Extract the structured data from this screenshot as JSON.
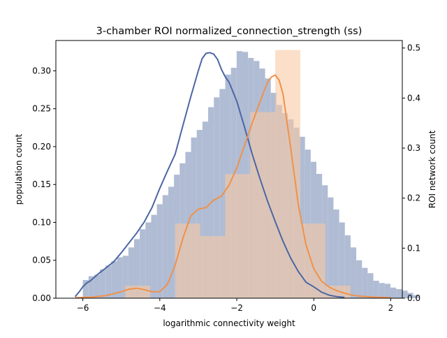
{
  "chart_data": {
    "type": "bar",
    "title": "3-chamber ROI normalized_connection_strength (ss)",
    "xlabel": "logarithmic connectivity weight",
    "ylabel": "population count",
    "y2label": "ROI network count",
    "xlim": [
      -6.7,
      2.3
    ],
    "ylim": [
      0,
      0.34
    ],
    "y2lim": [
      0,
      0.515
    ],
    "xticks": [
      -6,
      -4,
      -2,
      0,
      2
    ],
    "yticks": [
      0.0,
      0.05,
      0.1,
      0.15,
      0.2,
      0.25,
      0.3
    ],
    "ytick_labels": [
      "0.00",
      "0.05",
      "0.10",
      "0.15",
      "0.20",
      "0.25",
      "0.30"
    ],
    "y2ticks": [
      0.0,
      0.1,
      0.2,
      0.3,
      0.4,
      0.5
    ],
    "y2tick_labels": [
      "0.0",
      "0.1",
      "0.2",
      "0.3",
      "0.4",
      "0.5"
    ],
    "series": [
      {
        "axis": "left",
        "color": "#4c66a4",
        "fill": "#b0bcd4",
        "bin_start": -6.0,
        "bin_width": 0.148,
        "heights": [
          0.024,
          0.029,
          0.031,
          0.038,
          0.043,
          0.049,
          0.054,
          0.056,
          0.067,
          0.078,
          0.091,
          0.1,
          0.11,
          0.124,
          0.136,
          0.147,
          0.163,
          0.178,
          0.193,
          0.212,
          0.222,
          0.233,
          0.252,
          0.265,
          0.276,
          0.295,
          0.304,
          0.326,
          0.325,
          0.317,
          0.313,
          0.303,
          0.29,
          0.271,
          0.255,
          0.244,
          0.236,
          0.225,
          0.213,
          0.196,
          0.18,
          0.164,
          0.149,
          0.133,
          0.117,
          0.1,
          0.083,
          0.067,
          0.05,
          0.04,
          0.033,
          0.023,
          0.02,
          0.019,
          0.014,
          0.012,
          0.01,
          0.007,
          0.004
        ],
        "kde_x": [
          -6.2,
          -6.1,
          -6.0,
          -5.9,
          -5.8,
          -5.6,
          -5.4,
          -5.2,
          -5.0,
          -4.8,
          -4.6,
          -4.4,
          -4.2,
          -4.0,
          -3.8,
          -3.6,
          -3.4,
          -3.2,
          -3.0,
          -2.9,
          -2.8,
          -2.7,
          -2.6,
          -2.5,
          -2.4,
          -2.3,
          -2.2,
          -2.0,
          -1.8,
          -1.6,
          -1.4,
          -1.2,
          -1.0,
          -0.8,
          -0.6,
          -0.4,
          -0.2,
          0.0,
          0.2,
          0.4,
          0.6,
          0.8
        ],
        "kde_y": [
          0.002,
          0.008,
          0.015,
          0.02,
          0.023,
          0.032,
          0.04,
          0.048,
          0.06,
          0.073,
          0.086,
          0.101,
          0.12,
          0.145,
          0.168,
          0.19,
          0.228,
          0.265,
          0.3,
          0.316,
          0.323,
          0.324,
          0.322,
          0.315,
          0.302,
          0.292,
          0.285,
          0.26,
          0.226,
          0.19,
          0.158,
          0.128,
          0.101,
          0.075,
          0.053,
          0.035,
          0.021,
          0.015,
          0.008,
          0.004,
          0.002,
          0.001
        ]
      },
      {
        "axis": "right",
        "color": "#f0914a",
        "fill": "#f8c9a4",
        "bin_start": -4.9,
        "bin_width": 0.65,
        "heights": [
          0.025,
          0.0,
          0.149,
          0.124,
          0.248,
          0.372,
          0.496,
          0.149,
          0.025
        ],
        "kde_x": [
          -6.2,
          -5.8,
          -5.4,
          -5.0,
          -4.8,
          -4.6,
          -4.4,
          -4.2,
          -4.0,
          -3.8,
          -3.6,
          -3.4,
          -3.2,
          -3.0,
          -2.8,
          -2.6,
          -2.4,
          -2.2,
          -2.0,
          -1.8,
          -1.6,
          -1.4,
          -1.2,
          -1.1,
          -1.0,
          -0.9,
          -0.8,
          -0.6,
          -0.4,
          -0.2,
          0.0,
          0.2,
          0.4,
          0.6,
          0.8,
          1.0,
          1.2,
          1.6,
          2.0
        ],
        "kde_y": [
          0.001,
          0.002,
          0.005,
          0.013,
          0.018,
          0.02,
          0.017,
          0.013,
          0.013,
          0.028,
          0.066,
          0.12,
          0.164,
          0.178,
          0.181,
          0.196,
          0.204,
          0.226,
          0.26,
          0.305,
          0.35,
          0.392,
          0.432,
          0.442,
          0.446,
          0.436,
          0.408,
          0.3,
          0.186,
          0.106,
          0.059,
          0.034,
          0.022,
          0.015,
          0.01,
          0.006,
          0.004,
          0.002,
          0.001
        ]
      }
    ]
  }
}
